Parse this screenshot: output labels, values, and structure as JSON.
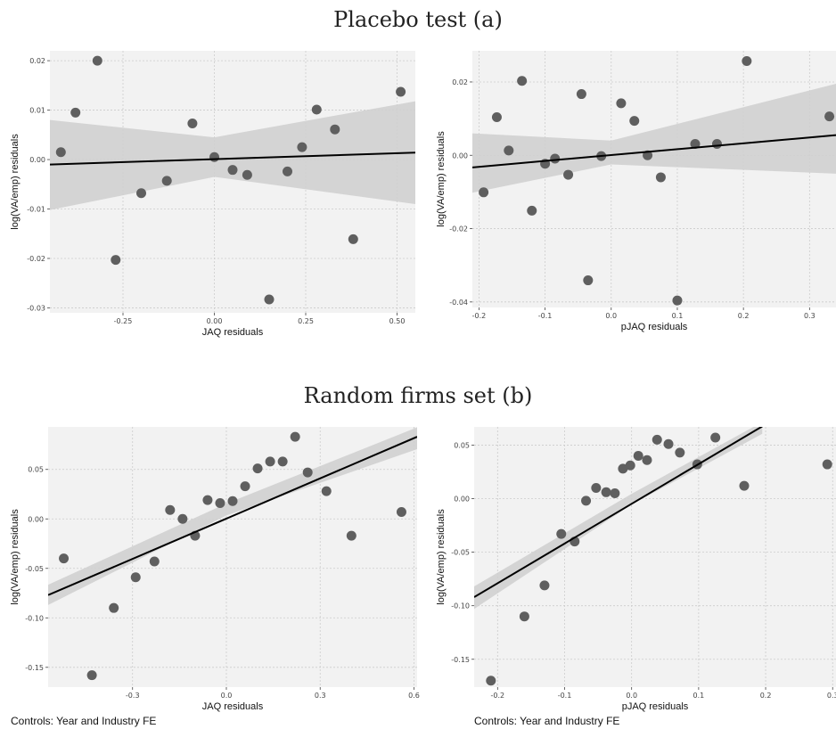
{
  "sections": {
    "a_title": "Placebo test (a)",
    "b_title": "Random firms set (b)"
  },
  "captions": {
    "left": "Controls: Year and Industry FE",
    "right": "Controls: Year and Industry FE"
  },
  "colors": {
    "panel_bg": "#f2f2f2",
    "grid": "#cccccc",
    "point": "#5f5f5f",
    "band": "#cfcfcf",
    "line": "#000000"
  },
  "chart_data": [
    {
      "id": "p1",
      "type": "scatter",
      "xlabel": "JAQ residuals",
      "ylabel": "log(VA/emp) residuals",
      "xlim": [
        -0.45,
        0.55
      ],
      "ylim": [
        -0.031,
        0.022
      ],
      "xticks": [
        -0.25,
        0.0,
        0.25,
        0.5
      ],
      "xtick_labels": [
        "-0.25",
        "0.00",
        "0.25",
        "0.50"
      ],
      "yticks": [
        -0.03,
        -0.02,
        -0.01,
        0.0,
        0.01,
        0.02
      ],
      "ytick_labels": [
        "-0.03",
        "-0.02",
        "-0.01",
        "0.00",
        "0.01",
        "0.02"
      ],
      "points": [
        [
          -0.42,
          0.0015
        ],
        [
          -0.38,
          0.0095
        ],
        [
          -0.32,
          0.02
        ],
        [
          -0.27,
          -0.0203
        ],
        [
          -0.2,
          -0.0068
        ],
        [
          -0.13,
          -0.0043
        ],
        [
          -0.06,
          0.0073
        ],
        [
          0.0,
          0.0005
        ],
        [
          0.05,
          -0.0021
        ],
        [
          0.09,
          -0.0031
        ],
        [
          0.15,
          -0.0283
        ],
        [
          0.2,
          -0.0024
        ],
        [
          0.24,
          0.0025
        ],
        [
          0.28,
          0.0101
        ],
        [
          0.33,
          0.0061
        ],
        [
          0.38,
          -0.0161
        ],
        [
          0.51,
          0.0137
        ]
      ],
      "fit": {
        "x": [
          -0.45,
          0.55
        ],
        "y": [
          -0.001,
          0.0014
        ]
      },
      "band": {
        "x": [
          -0.45,
          0.0,
          0.55
        ],
        "lower": [
          -0.0102,
          -0.0035,
          -0.009
        ],
        "upper": [
          0.008,
          0.0045,
          0.0118
        ]
      }
    },
    {
      "id": "p2",
      "type": "scatter",
      "xlabel": "pJAQ residuals",
      "ylabel": "log(VA/emp) residuals",
      "xlim": [
        -0.21,
        0.34
      ],
      "ylim": [
        -0.0415,
        0.0285
      ],
      "xticks": [
        -0.2,
        -0.1,
        0.0,
        0.1,
        0.2,
        0.3
      ],
      "xtick_labels": [
        "-0.2",
        "-0.1",
        "0.0",
        "0.1",
        "0.2",
        "0.3"
      ],
      "yticks": [
        -0.04,
        -0.02,
        0.0,
        0.02
      ],
      "ytick_labels": [
        "-0.04",
        "-0.02",
        "0.00",
        "0.02"
      ],
      "points": [
        [
          -0.193,
          -0.0101
        ],
        [
          -0.173,
          0.0104
        ],
        [
          -0.155,
          0.0013
        ],
        [
          -0.135,
          0.0203
        ],
        [
          -0.12,
          -0.0151
        ],
        [
          -0.1,
          -0.0023
        ],
        [
          -0.085,
          -0.0009
        ],
        [
          -0.065,
          -0.0053
        ],
        [
          -0.045,
          0.0167
        ],
        [
          -0.035,
          -0.0341
        ],
        [
          -0.015,
          -0.0002
        ],
        [
          0.015,
          0.0142
        ],
        [
          0.035,
          0.0094
        ],
        [
          0.055,
          0.0
        ],
        [
          0.075,
          -0.006
        ],
        [
          0.1,
          -0.0396
        ],
        [
          0.127,
          0.0031
        ],
        [
          0.16,
          0.0031
        ],
        [
          0.205,
          0.0257
        ],
        [
          0.33,
          0.0106
        ]
      ],
      "fit": {
        "x": [
          -0.21,
          0.34
        ],
        "y": [
          -0.0033,
          0.0055
        ]
      },
      "band": {
        "x": [
          -0.21,
          0.0,
          0.34
        ],
        "lower": [
          -0.0102,
          -0.0025,
          -0.005
        ],
        "upper": [
          0.006,
          0.004,
          0.0195
        ]
      }
    },
    {
      "id": "p3",
      "type": "scatter",
      "xlabel": "JAQ residuals",
      "ylabel": "log(VA/emp) residuals",
      "xlim": [
        -0.57,
        0.61
      ],
      "ylim": [
        -0.17,
        0.093
      ],
      "xticks": [
        -0.3,
        0.0,
        0.3,
        0.6
      ],
      "xtick_labels": [
        "-0.3",
        "0.0",
        "0.3",
        "0.6"
      ],
      "yticks": [
        -0.15,
        -0.1,
        -0.05,
        0.0,
        0.05
      ],
      "ytick_labels": [
        "-0.15",
        "-0.10",
        "-0.05",
        "0.00",
        "0.05"
      ],
      "points": [
        [
          -0.52,
          -0.04
        ],
        [
          -0.43,
          -0.158
        ],
        [
          -0.36,
          -0.09
        ],
        [
          -0.29,
          -0.059
        ],
        [
          -0.23,
          -0.043
        ],
        [
          -0.18,
          0.009
        ],
        [
          -0.14,
          0.0
        ],
        [
          -0.1,
          -0.017
        ],
        [
          -0.06,
          0.019
        ],
        [
          -0.02,
          0.016
        ],
        [
          0.02,
          0.018
        ],
        [
          0.06,
          0.033
        ],
        [
          0.1,
          0.051
        ],
        [
          0.14,
          0.058
        ],
        [
          0.18,
          0.058
        ],
        [
          0.22,
          0.083
        ],
        [
          0.26,
          0.047
        ],
        [
          0.32,
          0.028
        ],
        [
          0.4,
          -0.017
        ],
        [
          0.56,
          0.007
        ]
      ],
      "fit": {
        "x": [
          -0.57,
          0.61
        ],
        "y": [
          -0.077,
          0.083
        ]
      },
      "band": {
        "x": [
          -0.57,
          0.0,
          0.61
        ],
        "lower": [
          -0.087,
          0.0035,
          0.0705
        ],
        "upper": [
          -0.0665,
          0.0155,
          0.0925
        ]
      }
    },
    {
      "id": "p4",
      "type": "scatter",
      "xlabel": "pJAQ residuals",
      "ylabel": "log(VA/emp) residuals",
      "xlim": [
        -0.235,
        0.305
      ],
      "ylim": [
        -0.176,
        0.067
      ],
      "xticks": [
        -0.2,
        -0.1,
        0.0,
        0.1,
        0.2,
        0.3
      ],
      "xtick_labels": [
        "-0.2",
        "-0.1",
        "0.0",
        "0.1",
        "0.2",
        "0.3"
      ],
      "yticks": [
        -0.15,
        -0.1,
        -0.05,
        0.0,
        0.05
      ],
      "ytick_labels": [
        "-0.15",
        "-0.10",
        "-0.05",
        "0.00",
        "0.05"
      ],
      "points": [
        [
          -0.21,
          -0.17
        ],
        [
          -0.16,
          -0.11
        ],
        [
          -0.13,
          -0.081
        ],
        [
          -0.105,
          -0.033
        ],
        [
          -0.085,
          -0.04
        ],
        [
          -0.068,
          -0.002
        ],
        [
          -0.053,
          0.01
        ],
        [
          -0.038,
          0.006
        ],
        [
          -0.025,
          0.005
        ],
        [
          -0.013,
          0.028
        ],
        [
          -0.002,
          0.031
        ],
        [
          0.01,
          0.04
        ],
        [
          0.023,
          0.036
        ],
        [
          0.038,
          0.055
        ],
        [
          0.055,
          0.051
        ],
        [
          0.072,
          0.043
        ],
        [
          0.098,
          0.032
        ],
        [
          0.125,
          0.057
        ],
        [
          0.168,
          0.012
        ],
        [
          0.292,
          0.032
        ]
      ],
      "fit": {
        "x": [
          -0.235,
          0.195
        ],
        "y": [
          -0.092,
          0.0675
        ]
      },
      "band": {
        "x": [
          -0.235,
          0.0,
          0.195
        ],
        "lower": [
          -0.103,
          -0.0055,
          0.0605
        ],
        "upper": [
          -0.082,
          0.0045,
          0.0715
        ]
      }
    }
  ]
}
